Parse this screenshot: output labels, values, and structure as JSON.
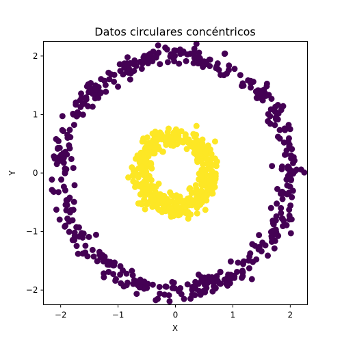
{
  "chart_data": {
    "type": "scatter",
    "title": "Datos circulares concéntricos",
    "xlabel": "X",
    "ylabel": "Y",
    "xlim": [
      -2.3,
      2.3
    ],
    "ylim": [
      -2.25,
      2.25
    ],
    "xticks": [
      -2,
      -1,
      0,
      1,
      2
    ],
    "yticks": [
      -2,
      -1,
      0,
      1,
      2
    ],
    "xtick_labels": [
      "−2",
      "−1",
      "0",
      "1",
      "2"
    ],
    "ytick_labels": [
      "−2",
      "−1",
      "0",
      "1",
      "2"
    ],
    "grid": false,
    "series": [
      {
        "color": "#440154",
        "radius_mean": 2.0,
        "radius_spread": 0.09,
        "n_points": 500
      },
      {
        "color": "#fde725",
        "radius_mean": 0.6,
        "radius_spread": 0.09,
        "n_points": 500
      }
    ]
  }
}
